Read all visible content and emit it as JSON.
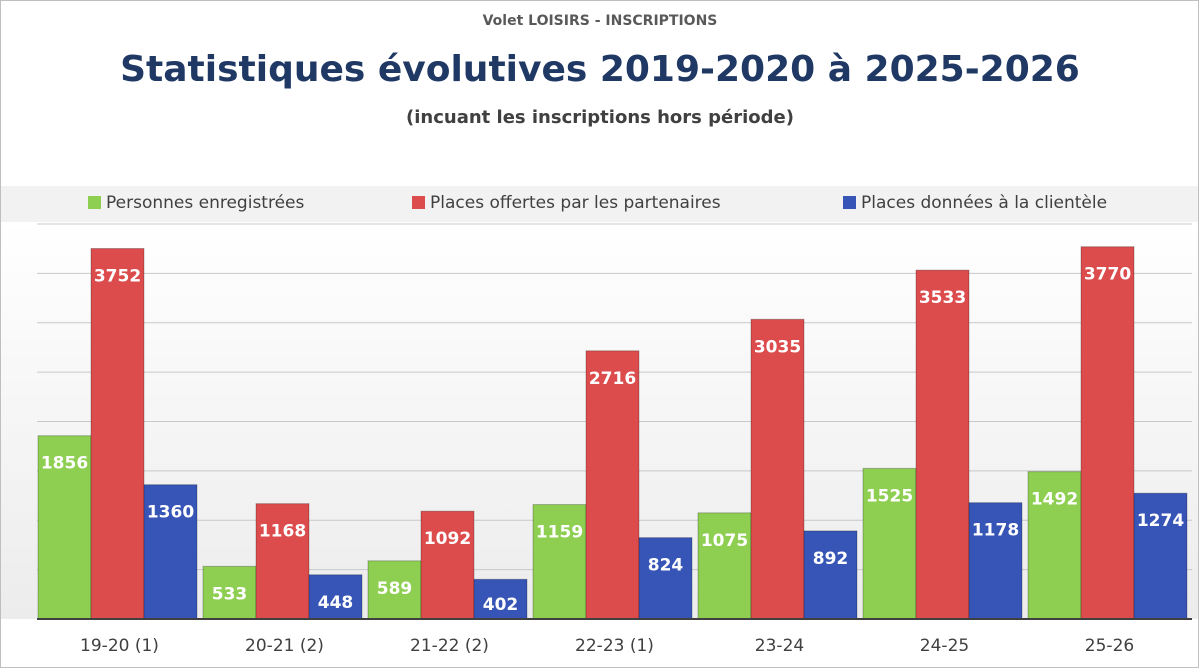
{
  "chart_data": {
    "type": "bar",
    "supertitle": "Volet LOISIRS - INSCRIPTIONS",
    "title": "Statistiques évolutives 2019-2020 à 2025-2026",
    "subtitle": "(incuant les inscriptions hors période)",
    "categories": [
      "19-20 (1)",
      "20-21 (2)",
      "21-22 (2)",
      "22-23 (1)",
      "23-24",
      "24-25",
      "25-26"
    ],
    "series": [
      {
        "name": "Personnes enregistrées",
        "color": "#8ecf52",
        "values": [
          1856,
          533,
          589,
          1159,
          1075,
          1525,
          1492
        ]
      },
      {
        "name": "Places offertes par les partenaires",
        "color": "#dd4c4c",
        "values": [
          3752,
          1168,
          1092,
          2716,
          3035,
          3533,
          3770
        ]
      },
      {
        "name": "Places données à la clientèle",
        "color": "#3755b6",
        "values": [
          1360,
          448,
          402,
          824,
          892,
          1178,
          1274
        ]
      }
    ],
    "ylim": [
      0,
      4000
    ],
    "yticks": [
      0,
      500,
      1000,
      1500,
      2000,
      2500,
      3000,
      3500,
      4000
    ],
    "grid": true,
    "legend": "top"
  }
}
